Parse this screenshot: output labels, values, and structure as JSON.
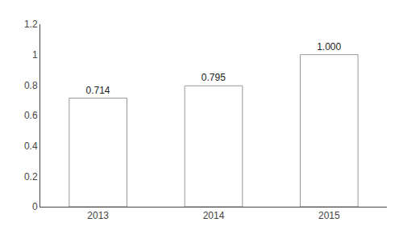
{
  "chart_data": {
    "type": "bar",
    "categories": [
      "2013",
      "2014",
      "2015"
    ],
    "values": [
      0.714,
      0.795,
      1.0
    ],
    "value_labels": [
      "0.714",
      "0.795",
      "1.000"
    ],
    "data_labels": true,
    "color": "#ffffff",
    "ylim": [
      0,
      1.2
    ],
    "yticks": [
      0,
      0.2,
      0.4,
      0.6,
      0.8,
      1,
      1.2
    ],
    "grid": false
  }
}
